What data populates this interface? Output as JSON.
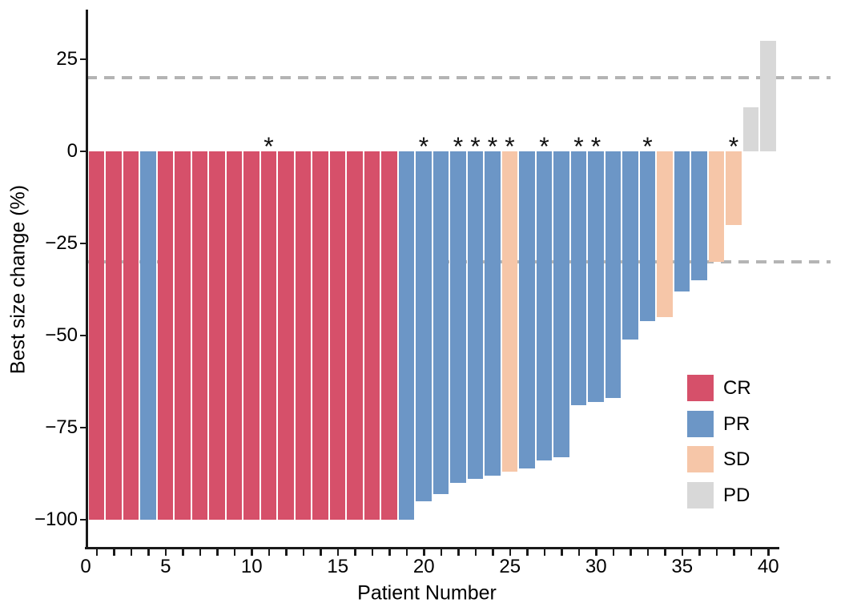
{
  "figure": {
    "x_axis_title": "Patient Number",
    "y_axis_title": "Best size change (%)"
  },
  "chart_data": {
    "type": "bar",
    "subtype": "waterfall",
    "title": "",
    "xlabel": "Patient Number",
    "ylabel": "Best size change (%)",
    "grid": "off",
    "legend_position": "inside-bottom-right",
    "annotation_symbol": "*",
    "reference_lines": [
      20,
      -30
    ],
    "reference_line_color": "#b4b4b4",
    "xlim": [
      0,
      41
    ],
    "ylim": [
      -107,
      36
    ],
    "x_ticks": [
      0,
      5,
      10,
      15,
      20,
      25,
      30,
      35,
      40
    ],
    "x_tick_labels": [
      "0",
      "5",
      "10",
      "15",
      "20",
      "25",
      "30",
      "35",
      "40"
    ],
    "x_minor_tick_every": 1,
    "y_ticks": [
      25,
      0,
      -25,
      -50,
      -75,
      -100
    ],
    "y_tick_labels": [
      "25",
      "0",
      "−25",
      "−50",
      "−75",
      "−100"
    ],
    "legend": [
      {
        "label": "CR",
        "color": "#D6506A"
      },
      {
        "label": "PR",
        "color": "#6C96C6"
      },
      {
        "label": "SD",
        "color": "#F6C6A8"
      },
      {
        "label": "PD",
        "color": "#D8D8D8"
      }
    ],
    "patients": [
      {
        "patient": 1,
        "value": -100,
        "response": "CR",
        "starred": false
      },
      {
        "patient": 2,
        "value": -100,
        "response": "CR",
        "starred": false
      },
      {
        "patient": 3,
        "value": -100,
        "response": "CR",
        "starred": false
      },
      {
        "patient": 4,
        "value": -100,
        "response": "PR",
        "starred": false
      },
      {
        "patient": 5,
        "value": -100,
        "response": "CR",
        "starred": false
      },
      {
        "patient": 6,
        "value": -100,
        "response": "CR",
        "starred": false
      },
      {
        "patient": 7,
        "value": -100,
        "response": "CR",
        "starred": false
      },
      {
        "patient": 8,
        "value": -100,
        "response": "CR",
        "starred": false
      },
      {
        "patient": 9,
        "value": -100,
        "response": "CR",
        "starred": false
      },
      {
        "patient": 10,
        "value": -100,
        "response": "CR",
        "starred": false
      },
      {
        "patient": 11,
        "value": -100,
        "response": "CR",
        "starred": true
      },
      {
        "patient": 12,
        "value": -100,
        "response": "CR",
        "starred": false
      },
      {
        "patient": 13,
        "value": -100,
        "response": "CR",
        "starred": false
      },
      {
        "patient": 14,
        "value": -100,
        "response": "CR",
        "starred": false
      },
      {
        "patient": 15,
        "value": -100,
        "response": "CR",
        "starred": false
      },
      {
        "patient": 16,
        "value": -100,
        "response": "CR",
        "starred": false
      },
      {
        "patient": 17,
        "value": -100,
        "response": "CR",
        "starred": false
      },
      {
        "patient": 18,
        "value": -100,
        "response": "CR",
        "starred": false
      },
      {
        "patient": 19,
        "value": -100,
        "response": "PR",
        "starred": false
      },
      {
        "patient": 20,
        "value": -95,
        "response": "PR",
        "starred": true
      },
      {
        "patient": 21,
        "value": -93,
        "response": "PR",
        "starred": false
      },
      {
        "patient": 22,
        "value": -90,
        "response": "PR",
        "starred": true
      },
      {
        "patient": 23,
        "value": -89,
        "response": "PR",
        "starred": true
      },
      {
        "patient": 24,
        "value": -88,
        "response": "PR",
        "starred": true
      },
      {
        "patient": 25,
        "value": -87,
        "response": "SD",
        "starred": true
      },
      {
        "patient": 26,
        "value": -86,
        "response": "PR",
        "starred": false
      },
      {
        "patient": 27,
        "value": -84,
        "response": "PR",
        "starred": true
      },
      {
        "patient": 28,
        "value": -83,
        "response": "PR",
        "starred": false
      },
      {
        "patient": 29,
        "value": -69,
        "response": "PR",
        "starred": true
      },
      {
        "patient": 30,
        "value": -68,
        "response": "PR",
        "starred": true
      },
      {
        "patient": 31,
        "value": -67,
        "response": "PR",
        "starred": false
      },
      {
        "patient": 32,
        "value": -51,
        "response": "PR",
        "starred": false
      },
      {
        "patient": 33,
        "value": -46,
        "response": "PR",
        "starred": true
      },
      {
        "patient": 34,
        "value": -45,
        "response": "SD",
        "starred": false
      },
      {
        "patient": 35,
        "value": -38,
        "response": "PR",
        "starred": false
      },
      {
        "patient": 36,
        "value": -35,
        "response": "PR",
        "starred": false
      },
      {
        "patient": 37,
        "value": -30,
        "response": "SD",
        "starred": false
      },
      {
        "patient": 38,
        "value": -20,
        "response": "SD",
        "starred": true
      },
      {
        "patient": 39,
        "value": 12,
        "response": "PD",
        "starred": false
      },
      {
        "patient": 40,
        "value": 30,
        "response": "PD",
        "starred": false
      }
    ]
  }
}
